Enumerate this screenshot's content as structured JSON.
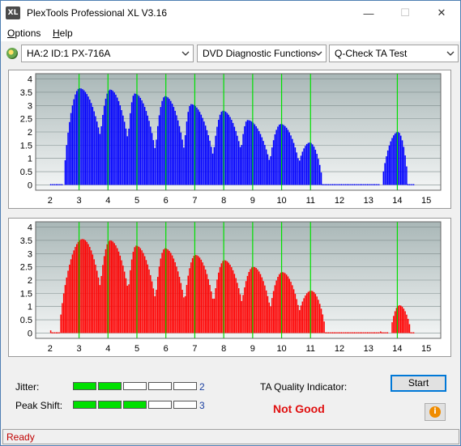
{
  "window": {
    "title": "PlexTools Professional XL V3.16",
    "icon_label": "XL",
    "minimize_glyph": "—",
    "maximize_glyph": "☐",
    "close_glyph": "✕"
  },
  "menu": {
    "items": [
      {
        "label_u": "O",
        "label_rest": "ptions"
      },
      {
        "label_u": "H",
        "label_rest": "elp"
      }
    ]
  },
  "toolbar": {
    "drive": "HA:2 ID:1  PX-716A",
    "function": "DVD Diagnostic Functions",
    "test": "Q-Check TA Test"
  },
  "chart_data": [
    {
      "type": "bar",
      "name_hint": "top",
      "color": "#0000ff",
      "xlim": [
        1.5,
        15.5
      ],
      "ylim": [
        -0.2,
        4.2
      ],
      "x_ticks": [
        "2",
        "3",
        "4",
        "5",
        "6",
        "7",
        "8",
        "9",
        "10",
        "11",
        "12",
        "13",
        "14",
        "15"
      ],
      "y_ticks": [
        "0",
        "0.5",
        "1",
        "1.5",
        "2",
        "2.5",
        "3",
        "3.5",
        "4"
      ],
      "green_lines": [
        3,
        4,
        5,
        6,
        7,
        8,
        9,
        10,
        11,
        14
      ],
      "lobes": [
        {
          "start": 2.45,
          "end": 3.95,
          "peak": 3.0,
          "height": 3.65
        },
        {
          "start": 3.6,
          "end": 4.85,
          "peak": 4.05,
          "height": 3.6
        },
        {
          "start": 4.6,
          "end": 5.75,
          "peak": 4.9,
          "height": 3.45
        },
        {
          "start": 5.55,
          "end": 6.75,
          "peak": 5.95,
          "height": 3.35
        },
        {
          "start": 6.55,
          "end": 7.75,
          "peak": 6.85,
          "height": 3.05
        },
        {
          "start": 7.55,
          "end": 8.75,
          "peak": 7.95,
          "height": 2.8
        },
        {
          "start": 8.5,
          "end": 9.7,
          "peak": 8.8,
          "height": 2.45
        },
        {
          "start": 9.5,
          "end": 10.7,
          "peak": 9.95,
          "height": 2.3
        },
        {
          "start": 10.45,
          "end": 11.4,
          "peak": 10.95,
          "height": 1.6
        },
        {
          "start": 13.45,
          "end": 14.35,
          "peak": 14.0,
          "height": 2.0
        }
      ],
      "baseline": [
        [
          2.0,
          2.4
        ],
        [
          11.4,
          13.4
        ],
        [
          14.35,
          14.6
        ]
      ]
    },
    {
      "type": "bar",
      "name_hint": "bottom",
      "color": "#ff0000",
      "xlim": [
        1.5,
        15.5
      ],
      "ylim": [
        -0.2,
        4.2
      ],
      "x_ticks": [
        "2",
        "3",
        "4",
        "5",
        "6",
        "7",
        "8",
        "9",
        "10",
        "11",
        "12",
        "13",
        "14",
        "15"
      ],
      "y_ticks": [
        "0",
        "0.5",
        "1",
        "1.5",
        "2",
        "2.5",
        "3",
        "3.5",
        "4"
      ],
      "green_lines": [
        3,
        4,
        5,
        6,
        7,
        8,
        9,
        10,
        11,
        14
      ],
      "lobes": [
        {
          "start": 2.3,
          "end": 3.9,
          "peak": 3.1,
          "height": 3.55
        },
        {
          "start": 3.6,
          "end": 4.85,
          "peak": 4.05,
          "height": 3.5
        },
        {
          "start": 4.6,
          "end": 5.75,
          "peak": 4.95,
          "height": 3.3
        },
        {
          "start": 5.55,
          "end": 6.75,
          "peak": 5.95,
          "height": 3.2
        },
        {
          "start": 6.55,
          "end": 7.75,
          "peak": 7.0,
          "height": 2.95
        },
        {
          "start": 7.55,
          "end": 8.75,
          "peak": 8.0,
          "height": 2.75
        },
        {
          "start": 8.5,
          "end": 9.7,
          "peak": 9.0,
          "height": 2.5
        },
        {
          "start": 9.5,
          "end": 10.7,
          "peak": 10.0,
          "height": 2.3
        },
        {
          "start": 10.45,
          "end": 11.5,
          "peak": 11.0,
          "height": 1.6
        },
        {
          "start": 13.75,
          "end": 14.45,
          "peak": 14.05,
          "height": 1.05
        }
      ],
      "baseline": [
        [
          2.0,
          2.3
        ],
        [
          11.5,
          13.7
        ],
        [
          14.45,
          14.6
        ]
      ],
      "spikes": [
        {
          "x": 2.02,
          "height": 0.1
        },
        {
          "x": 13.42,
          "height": 0.06
        }
      ]
    }
  ],
  "metrics": {
    "jitter_label": "Jitter:",
    "jitter_value": "2",
    "jitter_level": 2,
    "peak_label": "Peak Shift:",
    "peak_value": "3",
    "peak_level": 3,
    "segments_total": 5,
    "ta_label": "TA Quality Indicator:",
    "ta_result": "Not Good"
  },
  "buttons": {
    "start": "Start",
    "info_glyph": "i"
  },
  "status": {
    "text": "Ready"
  }
}
